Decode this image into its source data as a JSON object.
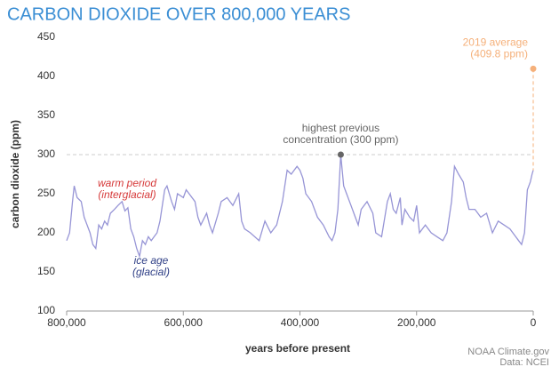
{
  "chart_data": {
    "type": "line",
    "title": "CARBON DIOXIDE OVER 800,000 YEARS",
    "x_label": "years before present",
    "y_label": "carbon dioxide (ppm)",
    "source": [
      "NOAA Climate.gov",
      "Data: NCEI"
    ],
    "xlim": [
      800000,
      0
    ],
    "ylim": [
      100,
      450
    ],
    "xticks": [
      {
        "value": 800000,
        "label": "800,000"
      },
      {
        "value": 600000,
        "label": "600,000"
      },
      {
        "value": 400000,
        "label": "400,000"
      },
      {
        "value": 200000,
        "label": "200,000"
      },
      0
    ],
    "yticks": [
      100,
      150,
      200,
      250,
      300,
      350,
      400,
      450
    ],
    "grid": false,
    "series": [
      {
        "color": "#9795d6",
        "x": [
          800000,
          795000,
          790000,
          787000,
          782000,
          775000,
          770000,
          765000,
          760000,
          755000,
          750000,
          745000,
          740000,
          735000,
          730000,
          725000,
          718000,
          712000,
          705000,
          700000,
          695000,
          690000,
          685000,
          680000,
          675000,
          670000,
          665000,
          660000,
          655000,
          650000,
          645000,
          640000,
          632000,
          628000,
          620000,
          615000,
          610000,
          600000,
          595000,
          590000,
          580000,
          575000,
          570000,
          560000,
          555000,
          550000,
          540000,
          535000,
          525000,
          515000,
          505000,
          500000,
          495000,
          485000,
          470000,
          460000,
          450000,
          440000,
          430000,
          422000,
          415000,
          405000,
          400000,
          395000,
          390000,
          380000,
          370000,
          360000,
          350000,
          345000,
          340000,
          335000,
          330000,
          325000,
          320000,
          315000,
          305000,
          300000,
          295000,
          285000,
          275000,
          270000,
          260000,
          250000,
          245000,
          240000,
          235000,
          228000,
          225000,
          220000,
          212000,
          205000,
          200000,
          195000,
          185000,
          175000,
          165000,
          155000,
          148000,
          140000,
          135000,
          128000,
          120000,
          115000,
          110000,
          100000,
          95000,
          90000,
          80000,
          70000,
          60000,
          50000,
          40000,
          30000,
          25000,
          20000,
          15000,
          10000,
          5000,
          2000,
          0
        ],
        "values": [
          190,
          200,
          240,
          260,
          245,
          240,
          220,
          210,
          200,
          185,
          180,
          210,
          205,
          215,
          210,
          225,
          230,
          235,
          240,
          228,
          232,
          205,
          195,
          180,
          170,
          190,
          185,
          195,
          190,
          195,
          200,
          215,
          255,
          260,
          240,
          230,
          250,
          245,
          255,
          250,
          240,
          220,
          210,
          225,
          210,
          200,
          225,
          240,
          245,
          235,
          250,
          215,
          205,
          200,
          190,
          215,
          200,
          210,
          240,
          280,
          275,
          285,
          280,
          270,
          250,
          240,
          220,
          210,
          195,
          190,
          200,
          230,
          300,
          260,
          250,
          240,
          220,
          210,
          230,
          240,
          225,
          200,
          195,
          240,
          250,
          230,
          225,
          245,
          210,
          230,
          220,
          215,
          235,
          200,
          210,
          200,
          195,
          190,
          200,
          240,
          285,
          275,
          265,
          245,
          230,
          230,
          225,
          220,
          225,
          200,
          215,
          210,
          205,
          195,
          190,
          185,
          200,
          255,
          265,
          275,
          280
        ]
      }
    ],
    "highlights": [
      {
        "lines": [
          "2019 average",
          "(409.8 ppm)"
        ],
        "color": "#f5b07a",
        "x": 0,
        "y": 409.8
      },
      {
        "lines": [
          "highest previous",
          "concentration (300 ppm)"
        ],
        "color": "#666666",
        "x": 330000,
        "y": 300
      }
    ],
    "notes": [
      {
        "lines": [
          "warm period",
          "(interglacial)"
        ],
        "color": "#d63b3b"
      },
      {
        "lines": [
          "ice age",
          "(glacial)"
        ],
        "color": "#2f3f86"
      }
    ]
  }
}
